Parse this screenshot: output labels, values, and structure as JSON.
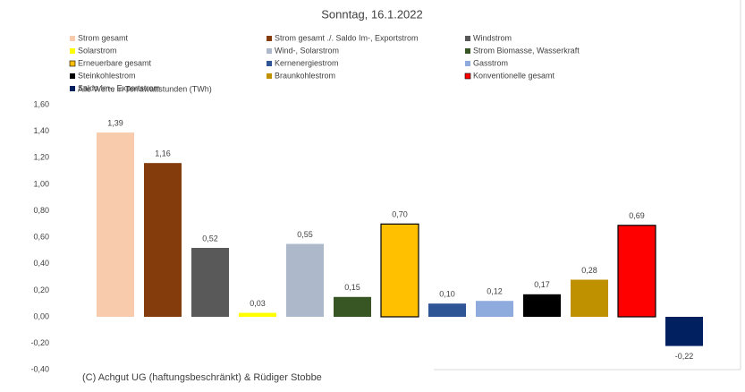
{
  "chart_data": {
    "type": "bar",
    "title": "Sonntag, 16.1.2022",
    "note": "Alle Werte in Terrawattstunden (TWh)",
    "footer": "(C) Achgut UG (haftungsbeschränkt) & Rüdiger Stobbe",
    "categories": [
      null
    ],
    "ylim": [
      -0.4,
      1.6
    ],
    "yticks": [
      {
        "value": -0.4,
        "label": "-0,40"
      },
      {
        "value": -0.2,
        "label": "-0,20"
      },
      {
        "value": 0,
        "label": "0,00"
      },
      {
        "value": 0.2,
        "label": "0,20"
      },
      {
        "value": 0.4,
        "label": "0,40"
      },
      {
        "value": 0.6,
        "label": "0,60"
      },
      {
        "value": 0.8,
        "label": "0,80"
      },
      {
        "value": 1.0,
        "label": "1,00"
      },
      {
        "value": 1.2,
        "label": "1,20"
      },
      {
        "value": 1.4,
        "label": "1,40"
      },
      {
        "value": 1.6,
        "label": "1,60"
      }
    ],
    "grid": false,
    "series": [
      {
        "name": "Strom gesamt",
        "color": "#f8cbad",
        "values": [
          1.39
        ],
        "value_labels": [
          "1,39"
        ]
      },
      {
        "name": "Strom gesamt ./. Saldo Im-, Exportstrom",
        "color": "#843c0c",
        "values": [
          1.16
        ],
        "value_labels": [
          "1,16"
        ]
      },
      {
        "name": "Windstrom",
        "color": "#595959",
        "values": [
          0.52
        ],
        "value_labels": [
          "0,52"
        ]
      },
      {
        "name": "Solarstrom",
        "color": "#ffff00",
        "values": [
          0.03
        ],
        "value_labels": [
          "0,03"
        ]
      },
      {
        "name": "Wind-, Solarstrom",
        "color": "#adb9ca",
        "values": [
          0.55
        ],
        "value_labels": [
          "0,55"
        ]
      },
      {
        "name": "Strom Biomasse, Wasserkraft",
        "color": "#375623",
        "values": [
          0.15
        ],
        "value_labels": [
          "0,15"
        ]
      },
      {
        "name": "Erneuerbare gesamt",
        "color": "#ffc000",
        "edgecolor": "#000000",
        "values": [
          0.7
        ],
        "value_labels": [
          "0,70"
        ]
      },
      {
        "name": "Kernenergiestrom",
        "color": "#2f5597",
        "values": [
          0.1
        ],
        "value_labels": [
          "0,10"
        ]
      },
      {
        "name": "Gasstrom",
        "color": "#8faadc",
        "values": [
          0.12
        ],
        "value_labels": [
          "0,12"
        ]
      },
      {
        "name": "Steinkohlestrom",
        "color": "#000000",
        "values": [
          0.17
        ],
        "value_labels": [
          "0,17"
        ]
      },
      {
        "name": "Braunkohlestrom",
        "color": "#bf9000",
        "values": [
          0.28
        ],
        "value_labels": [
          "0,28"
        ]
      },
      {
        "name": "Konventionelle gesamt",
        "color": "#ff0000",
        "edgecolor": "#000000",
        "values": [
          0.69
        ],
        "value_labels": [
          "0,69"
        ]
      },
      {
        "name": "Saldo Im-, Exportstrom",
        "color": "#002060",
        "values": [
          -0.22
        ],
        "value_labels": [
          "-0,22"
        ]
      }
    ]
  }
}
